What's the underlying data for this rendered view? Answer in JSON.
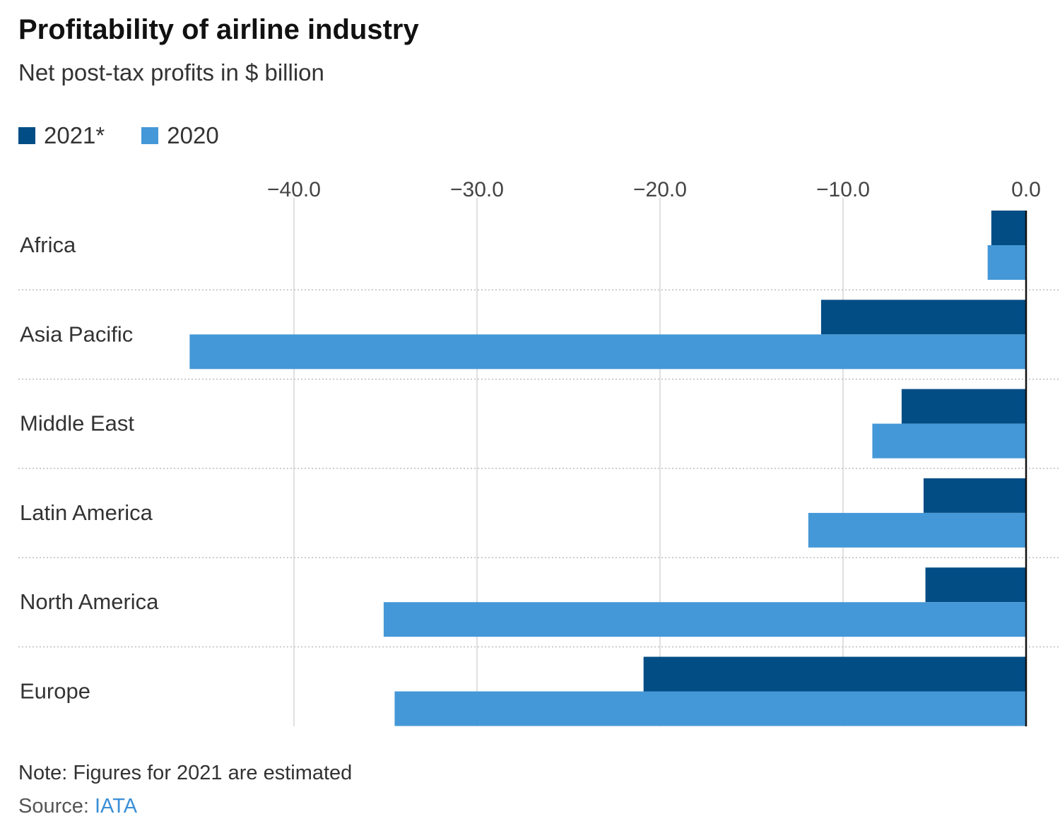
{
  "header": {
    "title": "Profitability of airline industry",
    "subtitle": "Net post-tax profits in $ billion"
  },
  "colors": {
    "series_2021": "#034d85",
    "series_2020": "#4598d7",
    "grid": "#d6d6d6",
    "axis": "#111111",
    "source_link": "#3b8fd6"
  },
  "legend": {
    "items": [
      {
        "label": "2021*",
        "color": "#034d85"
      },
      {
        "label": "2020",
        "color": "#4598d7"
      }
    ]
  },
  "chart_data": {
    "type": "bar",
    "orientation": "horizontal",
    "title": "Profitability of airline industry",
    "subtitle": "Net post-tax profits in $ billion",
    "categories": [
      "Africa",
      "Asia Pacific",
      "Middle East",
      "Latin America",
      "North America",
      "Europe"
    ],
    "series": [
      {
        "name": "2021*",
        "color": "#034d85",
        "values": [
          -1.9,
          -11.2,
          -6.8,
          -5.6,
          -5.5,
          -20.9
        ]
      },
      {
        "name": "2020",
        "color": "#4598d7",
        "values": [
          -2.1,
          -45.7,
          -8.4,
          -11.9,
          -35.1,
          -34.5
        ]
      }
    ],
    "xticks": [
      -40,
      -30,
      -20,
      -10,
      0
    ],
    "xtick_labels": [
      "−40.0",
      "−30.0",
      "−20.0",
      "−10.0",
      "0.0"
    ],
    "xlim": [
      -45.7,
      0
    ],
    "xlabel": "",
    "ylabel": "",
    "legend_position": "top-left",
    "grid": true
  },
  "footer": {
    "note": "Note: Figures for 2021 are estimated",
    "source_prefix": "Source: ",
    "source_name": "IATA"
  }
}
